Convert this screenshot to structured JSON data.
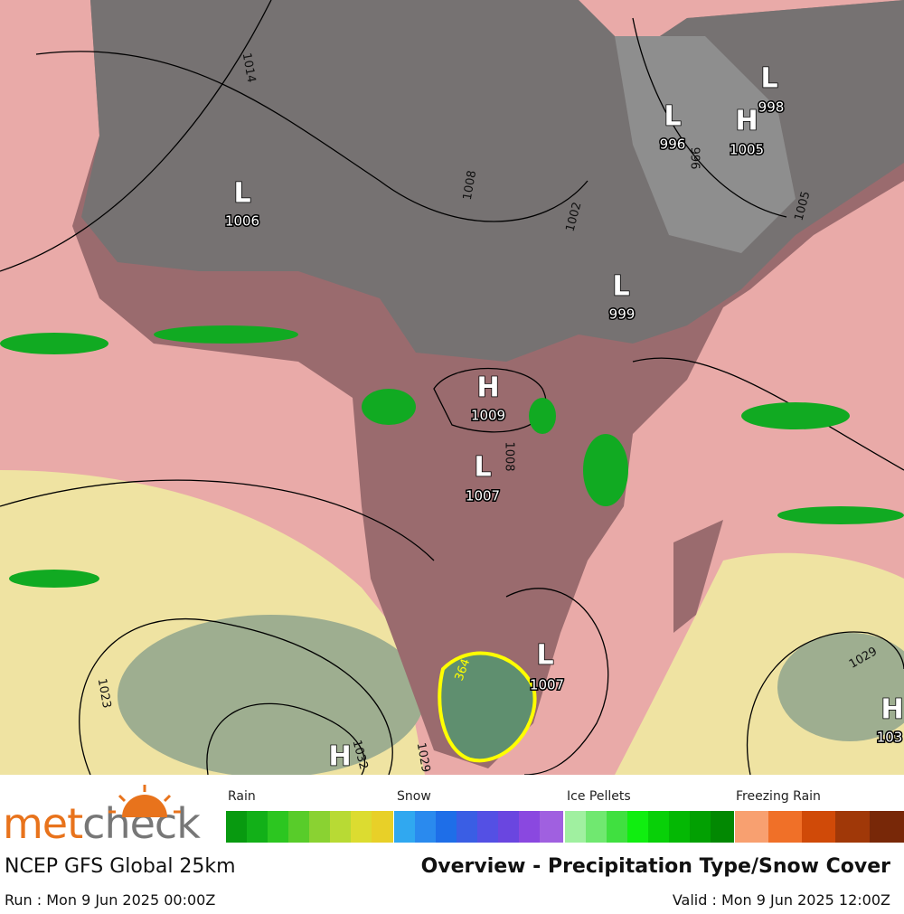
{
  "map": {
    "pressure_centers": [
      {
        "symbol": "L",
        "value": "1006"
      },
      {
        "symbol": "L",
        "value": "996"
      },
      {
        "symbol": "H",
        "value": "1005"
      },
      {
        "symbol": "L",
        "value": "998"
      },
      {
        "symbol": "L",
        "value": "999"
      },
      {
        "symbol": "H",
        "value": "1009"
      },
      {
        "symbol": "L",
        "value": "1007"
      },
      {
        "symbol": "L",
        "value": "1007"
      },
      {
        "symbol": "H"
      },
      {
        "symbol": "H",
        "value": "103"
      }
    ],
    "isobar_labels": [
      "1014",
      "1008",
      "1002",
      "996",
      "1005",
      "1008",
      "1023",
      "1032",
      "1029",
      "1029",
      "364"
    ]
  },
  "footer": {
    "brand": {
      "part1": "met",
      "part2": "check"
    },
    "model": "NCEP GFS Global 25km",
    "product": "Overview - Precipitation Type/Snow Cover",
    "run": "Run : Mon 9 Jun 2025 00:00Z",
    "valid": "Valid : Mon 9 Jun 2025 12:00Z",
    "legend": [
      "Rain",
      "Snow",
      "Ice Pellets",
      "Freezing Rain"
    ]
  }
}
